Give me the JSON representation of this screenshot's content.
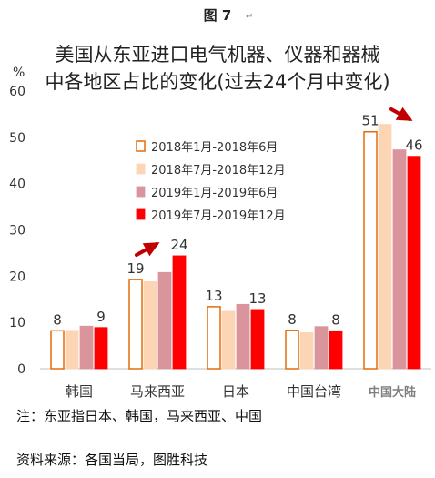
{
  "figure_label": "图 7",
  "figure_mark": "↵",
  "chart_data": {
    "type": "bar",
    "title_lines": [
      "美国从东亚进口电气机器、仪器和器械",
      "中各地区占比的变化(过去24个月中变化)"
    ],
    "ylabel": "%",
    "ylim": [
      0,
      60
    ],
    "yticks": [
      0,
      10,
      20,
      30,
      40,
      50,
      60
    ],
    "categories": [
      "韩国",
      "马来西亚",
      "日本",
      "中国台湾",
      "中国大陆"
    ],
    "series": [
      {
        "name": "2018年1月-2018年6月",
        "values": [
          8.2,
          19.3,
          13.4,
          8.3,
          51.2
        ]
      },
      {
        "name": "2018年7月-2018年12月",
        "values": [
          8.3,
          18.8,
          12.4,
          7.8,
          52.8
        ]
      },
      {
        "name": "2019年1月-2019年6月",
        "values": [
          9.2,
          20.8,
          13.9,
          9.1,
          47.3
        ]
      },
      {
        "name": "2019年7月-2019年12月",
        "values": [
          8.9,
          24.4,
          12.8,
          8.2,
          45.9
        ]
      }
    ],
    "data_labels": [
      {
        "category": "韩国",
        "series": 0,
        "text": "8"
      },
      {
        "category": "韩国",
        "series": 3,
        "text": "9"
      },
      {
        "category": "马来西亚",
        "series": 0,
        "text": "19"
      },
      {
        "category": "马来西亚",
        "series": 3,
        "text": "24"
      },
      {
        "category": "日本",
        "series": 0,
        "text": "13"
      },
      {
        "category": "日本",
        "series": 3,
        "text": "13"
      },
      {
        "category": "中国台湾",
        "series": 0,
        "text": "8"
      },
      {
        "category": "中国台湾",
        "series": 3,
        "text": "8"
      },
      {
        "category": "中国大陆",
        "series": 0,
        "text": "51"
      },
      {
        "category": "中国大陆",
        "series": 3,
        "text": "46"
      }
    ],
    "grid": false,
    "legend_position": "inside-center",
    "colors": {
      "series": [
        "#ffffff",
        "#fcd5b4",
        "#d9959b",
        "#ff0000"
      ],
      "series_stroke": [
        "#e46c0a",
        "#fcd5b4",
        "#d9959b",
        "#ff0000"
      ],
      "arrow": "#c00000",
      "axis": "#bfbfbf"
    }
  },
  "note": "注：东亚指日本、韩国，马来西亚、中国",
  "source": "资料来源：各国当局，图胜科技"
}
